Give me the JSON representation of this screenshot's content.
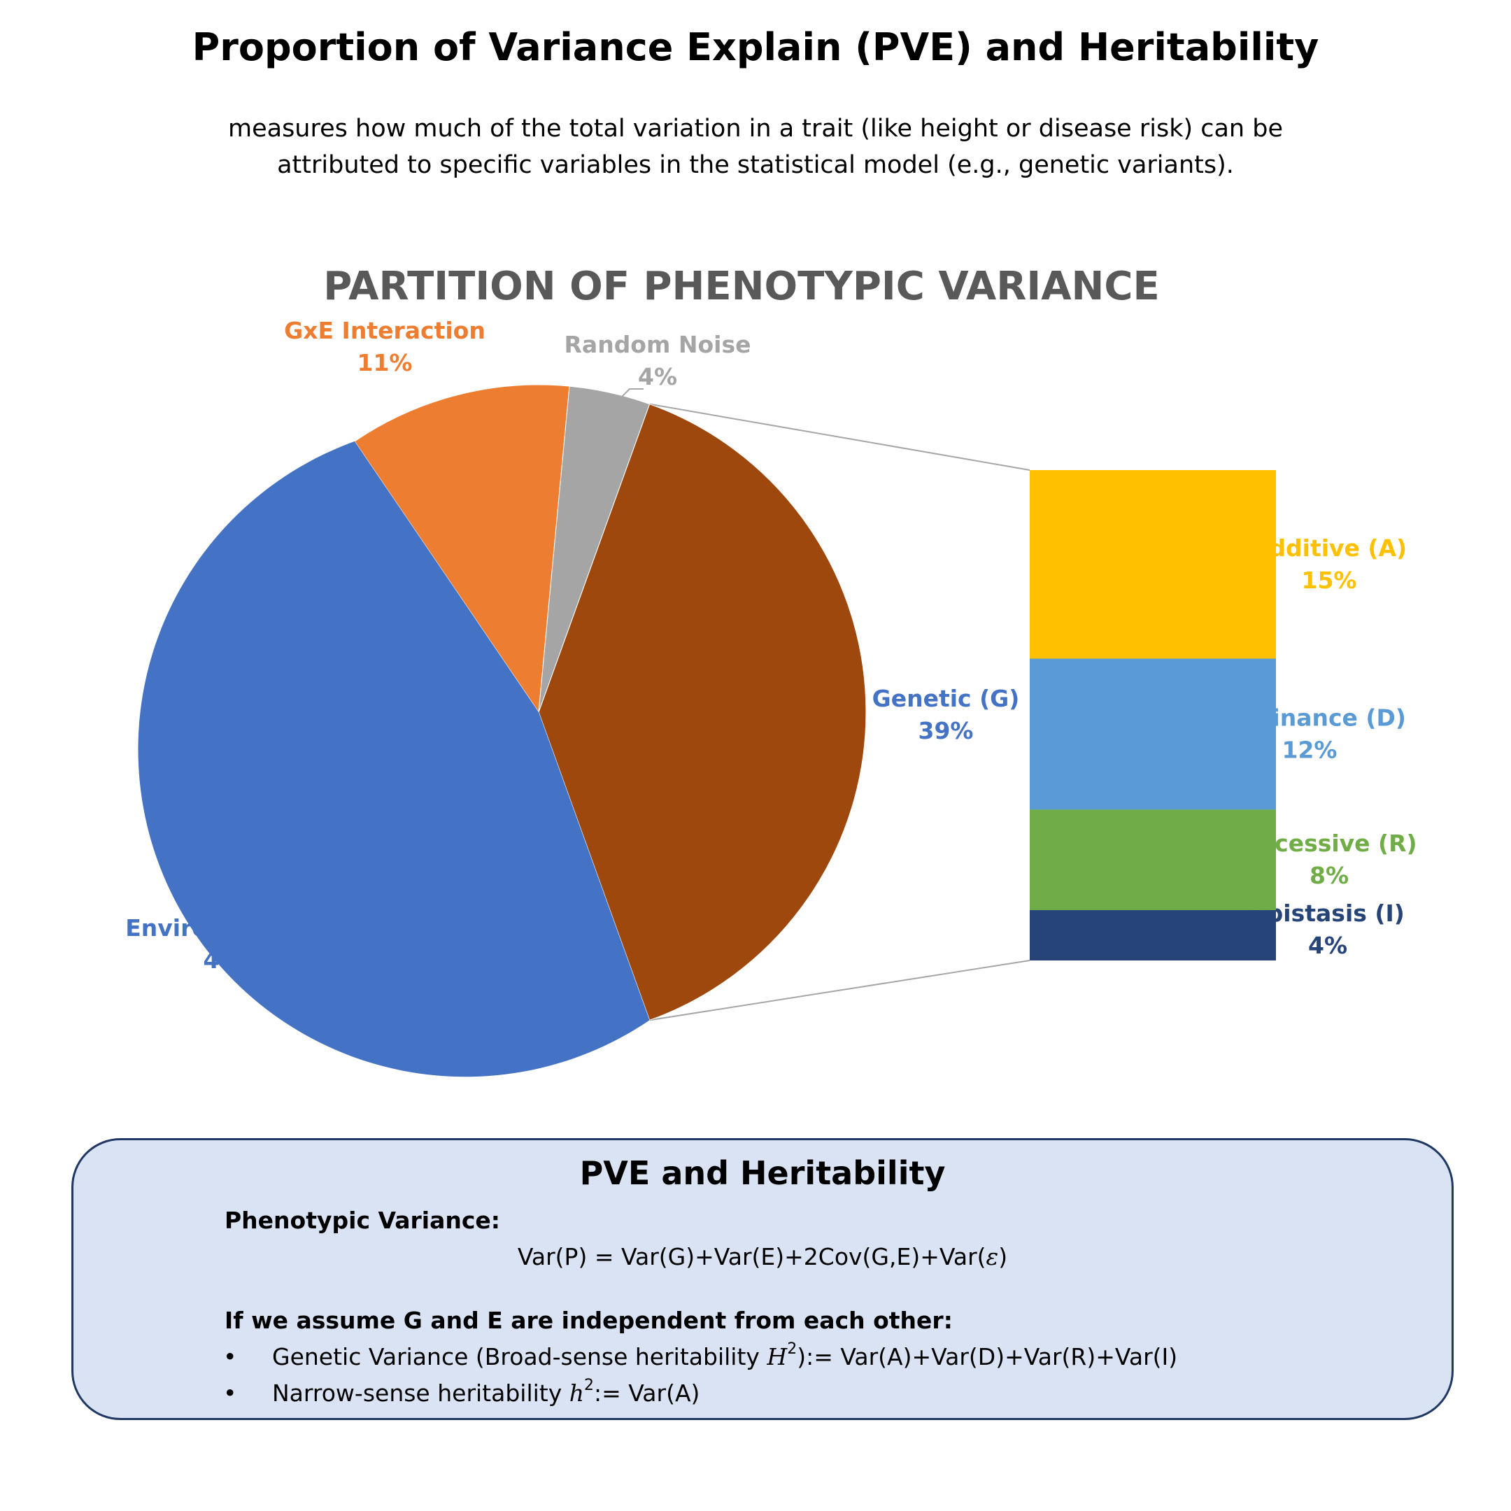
{
  "header": {
    "title": "Proportion of Variance Explain (PVE) and Heritability",
    "subtitle_line1": "measures how much of the total variation in a trait (like height or disease risk) can be",
    "subtitle_line2": "attributed to specific variables in the statistical model (e.g., genetic variants)."
  },
  "chart_data": {
    "type": "bar-of-pie",
    "title": "PARTITION OF PHENOTYPIC VARIANCE",
    "pie": [
      {
        "label": "Genetic (G)",
        "value": 39,
        "display": "39%",
        "color": "#9e480e",
        "label_color": "#4472c4"
      },
      {
        "label": "Environment (E)",
        "value": 46,
        "display": "46%",
        "color": "#4472c4",
        "label_color": "#4472c4"
      },
      {
        "label": "GxE Interaction",
        "value": 11,
        "display": "11%",
        "color": "#ed7d31",
        "label_color": "#ed7d31"
      },
      {
        "label": "Random Noise",
        "value": 4,
        "display": "4%",
        "color": "#a5a5a5",
        "label_color": "#a5a5a5"
      }
    ],
    "breakdown_of": "Genetic (G)",
    "bar": [
      {
        "label": "Additive (A)",
        "value": 15,
        "display": "15%",
        "color": "#ffc000",
        "label_color": "#ffc000"
      },
      {
        "label": "Dominance (D)",
        "value": 12,
        "display": "12%",
        "color": "#5b9bd5",
        "label_color": "#5b9bd5"
      },
      {
        "label": "Recessive (R)",
        "value": 8,
        "display": "8%",
        "color": "#70ad47",
        "label_color": "#70ad47"
      },
      {
        "label": "Epistasis (I)",
        "value": 4,
        "display": "4%",
        "color": "#264478",
        "label_color": "#264478"
      }
    ]
  },
  "panel": {
    "title": "PVE and Heritability",
    "heading1": "Phenotypic Variance:",
    "formula_pre": "Var(P) = Var(G)+Var(E)+2Cov(G,E)+Var(",
    "formula_eps": "ε",
    "formula_post": ")",
    "heading2": "If we assume G and E are independent from each other:",
    "bullet_symbol": "•",
    "bullet1_pre": "Genetic Variance (Broad-sense heritability ",
    "bullet1_math": "H",
    "bullet1_sup": "2",
    "bullet1_post": "):= Var(A)+Var(D)+Var(R)+Var(I)",
    "bullet2_pre": "Narrow-sense heritability ",
    "bullet2_math": "h",
    "bullet2_sup": "2",
    "bullet2_post": ":= Var(A)"
  }
}
